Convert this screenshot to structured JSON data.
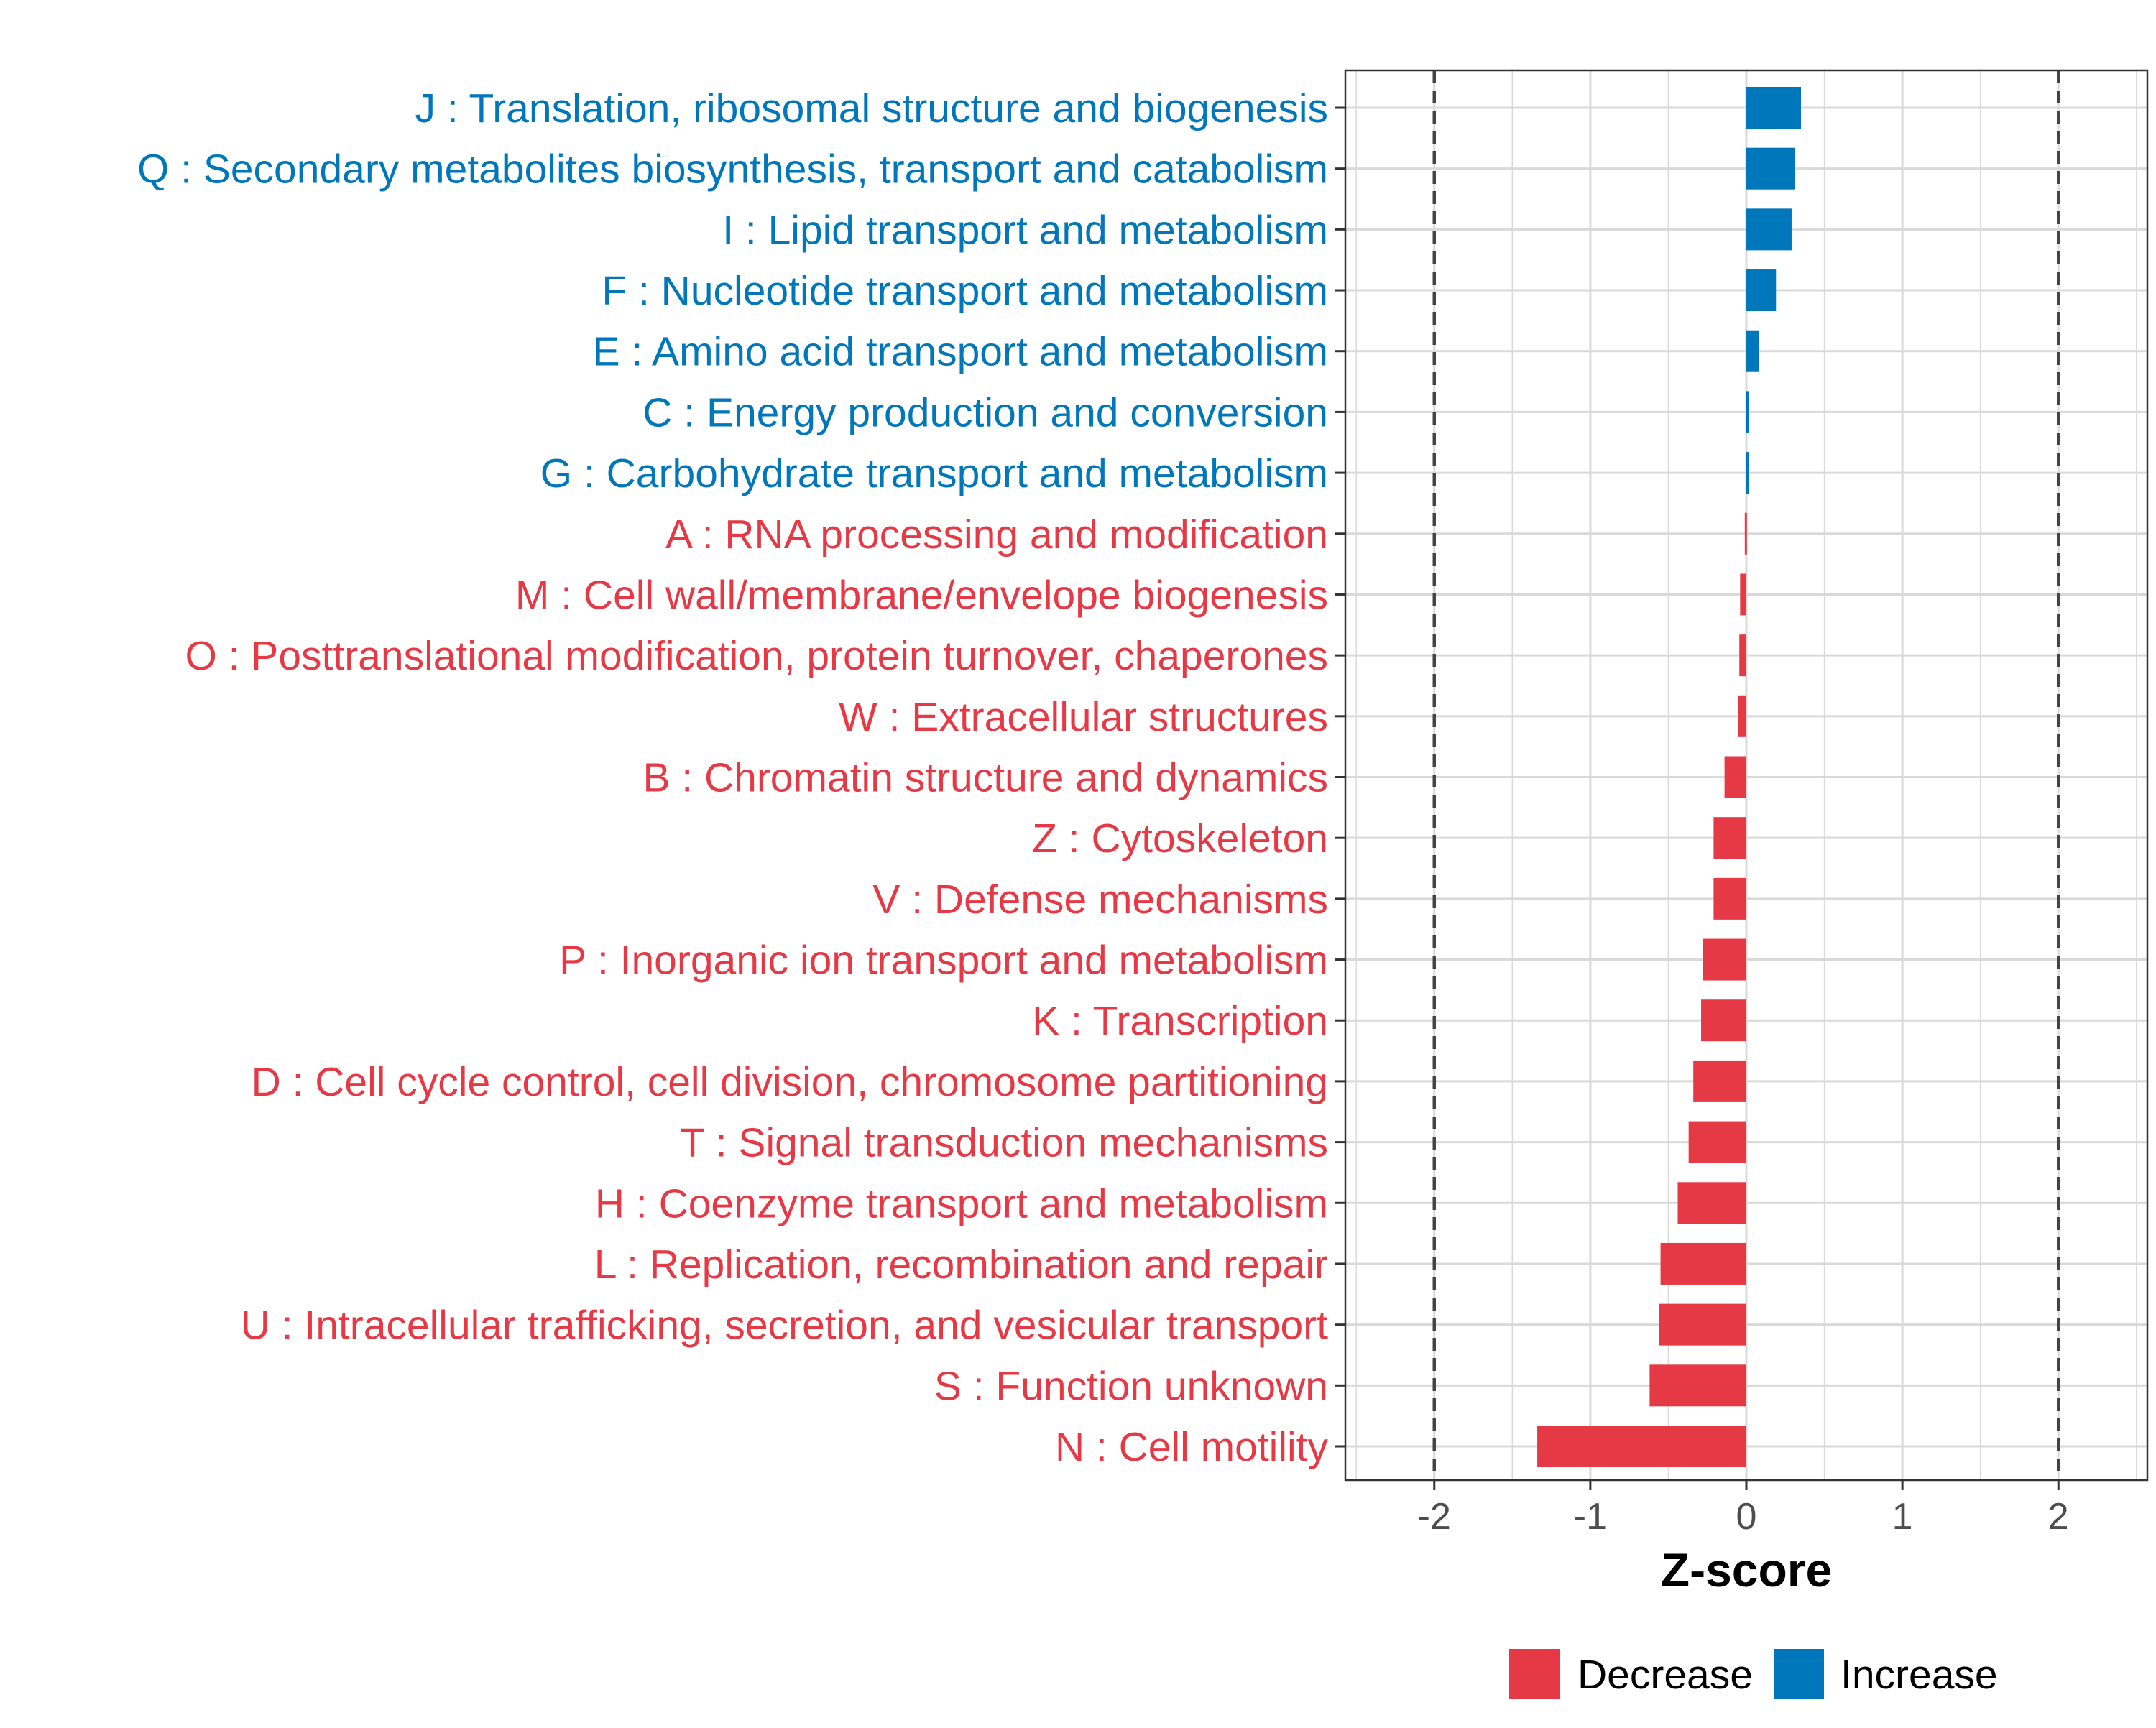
{
  "chart_data": {
    "type": "bar",
    "orientation": "horizontal",
    "title": "",
    "xlabel": "Z-score",
    "ylabel": "",
    "xlim": [
      -2.57,
      2.57
    ],
    "xticks": [
      -2,
      -1,
      0,
      1,
      2
    ],
    "xtick_labels": [
      "-2",
      "-1",
      "0",
      "1",
      "2"
    ],
    "reference_lines": [
      -2,
      2
    ],
    "grid": true,
    "legend_position": "bottom",
    "colors": {
      "Decrease": "#E63946",
      "Increase": "#0077BB"
    },
    "legend": [
      "Decrease",
      "Increase"
    ],
    "categories": [
      "J : Translation, ribosomal structure and biogenesis",
      "Q : Secondary metabolites biosynthesis, transport and catabolism",
      "I : Lipid transport and metabolism",
      "F : Nucleotide transport and metabolism",
      "E : Amino acid transport and metabolism",
      "C : Energy production and conversion",
      "G : Carbohydrate transport and metabolism",
      "A : RNA processing and modification",
      "M : Cell wall/membrane/envelope biogenesis",
      "O : Posttranslational modification, protein turnover, chaperones",
      "W : Extracellular structures",
      "B : Chromatin structure and dynamics",
      "Z : Cytoskeleton",
      "V : Defense mechanisms",
      "P : Inorganic ion transport and metabolism",
      "K : Transcription",
      "D : Cell cycle control, cell division, chromosome partitioning",
      "T : Signal transduction mechanisms",
      "H : Coenzyme transport and metabolism",
      "L : Replication, recombination and repair",
      "U : Intracellular trafficking, secretion, and vesicular transport",
      "S : Function unknown",
      "N : Cell motility"
    ],
    "values": [
      0.35,
      0.31,
      0.29,
      0.19,
      0.08,
      0.015,
      0.01,
      -0.01,
      -0.04,
      -0.045,
      -0.055,
      -0.14,
      -0.21,
      -0.21,
      -0.28,
      -0.29,
      -0.34,
      -0.37,
      -0.44,
      -0.55,
      -0.56,
      -0.62,
      -1.34
    ],
    "groups": [
      "Increase",
      "Increase",
      "Increase",
      "Increase",
      "Increase",
      "Increase",
      "Increase",
      "Decrease",
      "Decrease",
      "Decrease",
      "Decrease",
      "Decrease",
      "Decrease",
      "Decrease",
      "Decrease",
      "Decrease",
      "Decrease",
      "Decrease",
      "Decrease",
      "Decrease",
      "Decrease",
      "Decrease",
      "Decrease"
    ]
  }
}
